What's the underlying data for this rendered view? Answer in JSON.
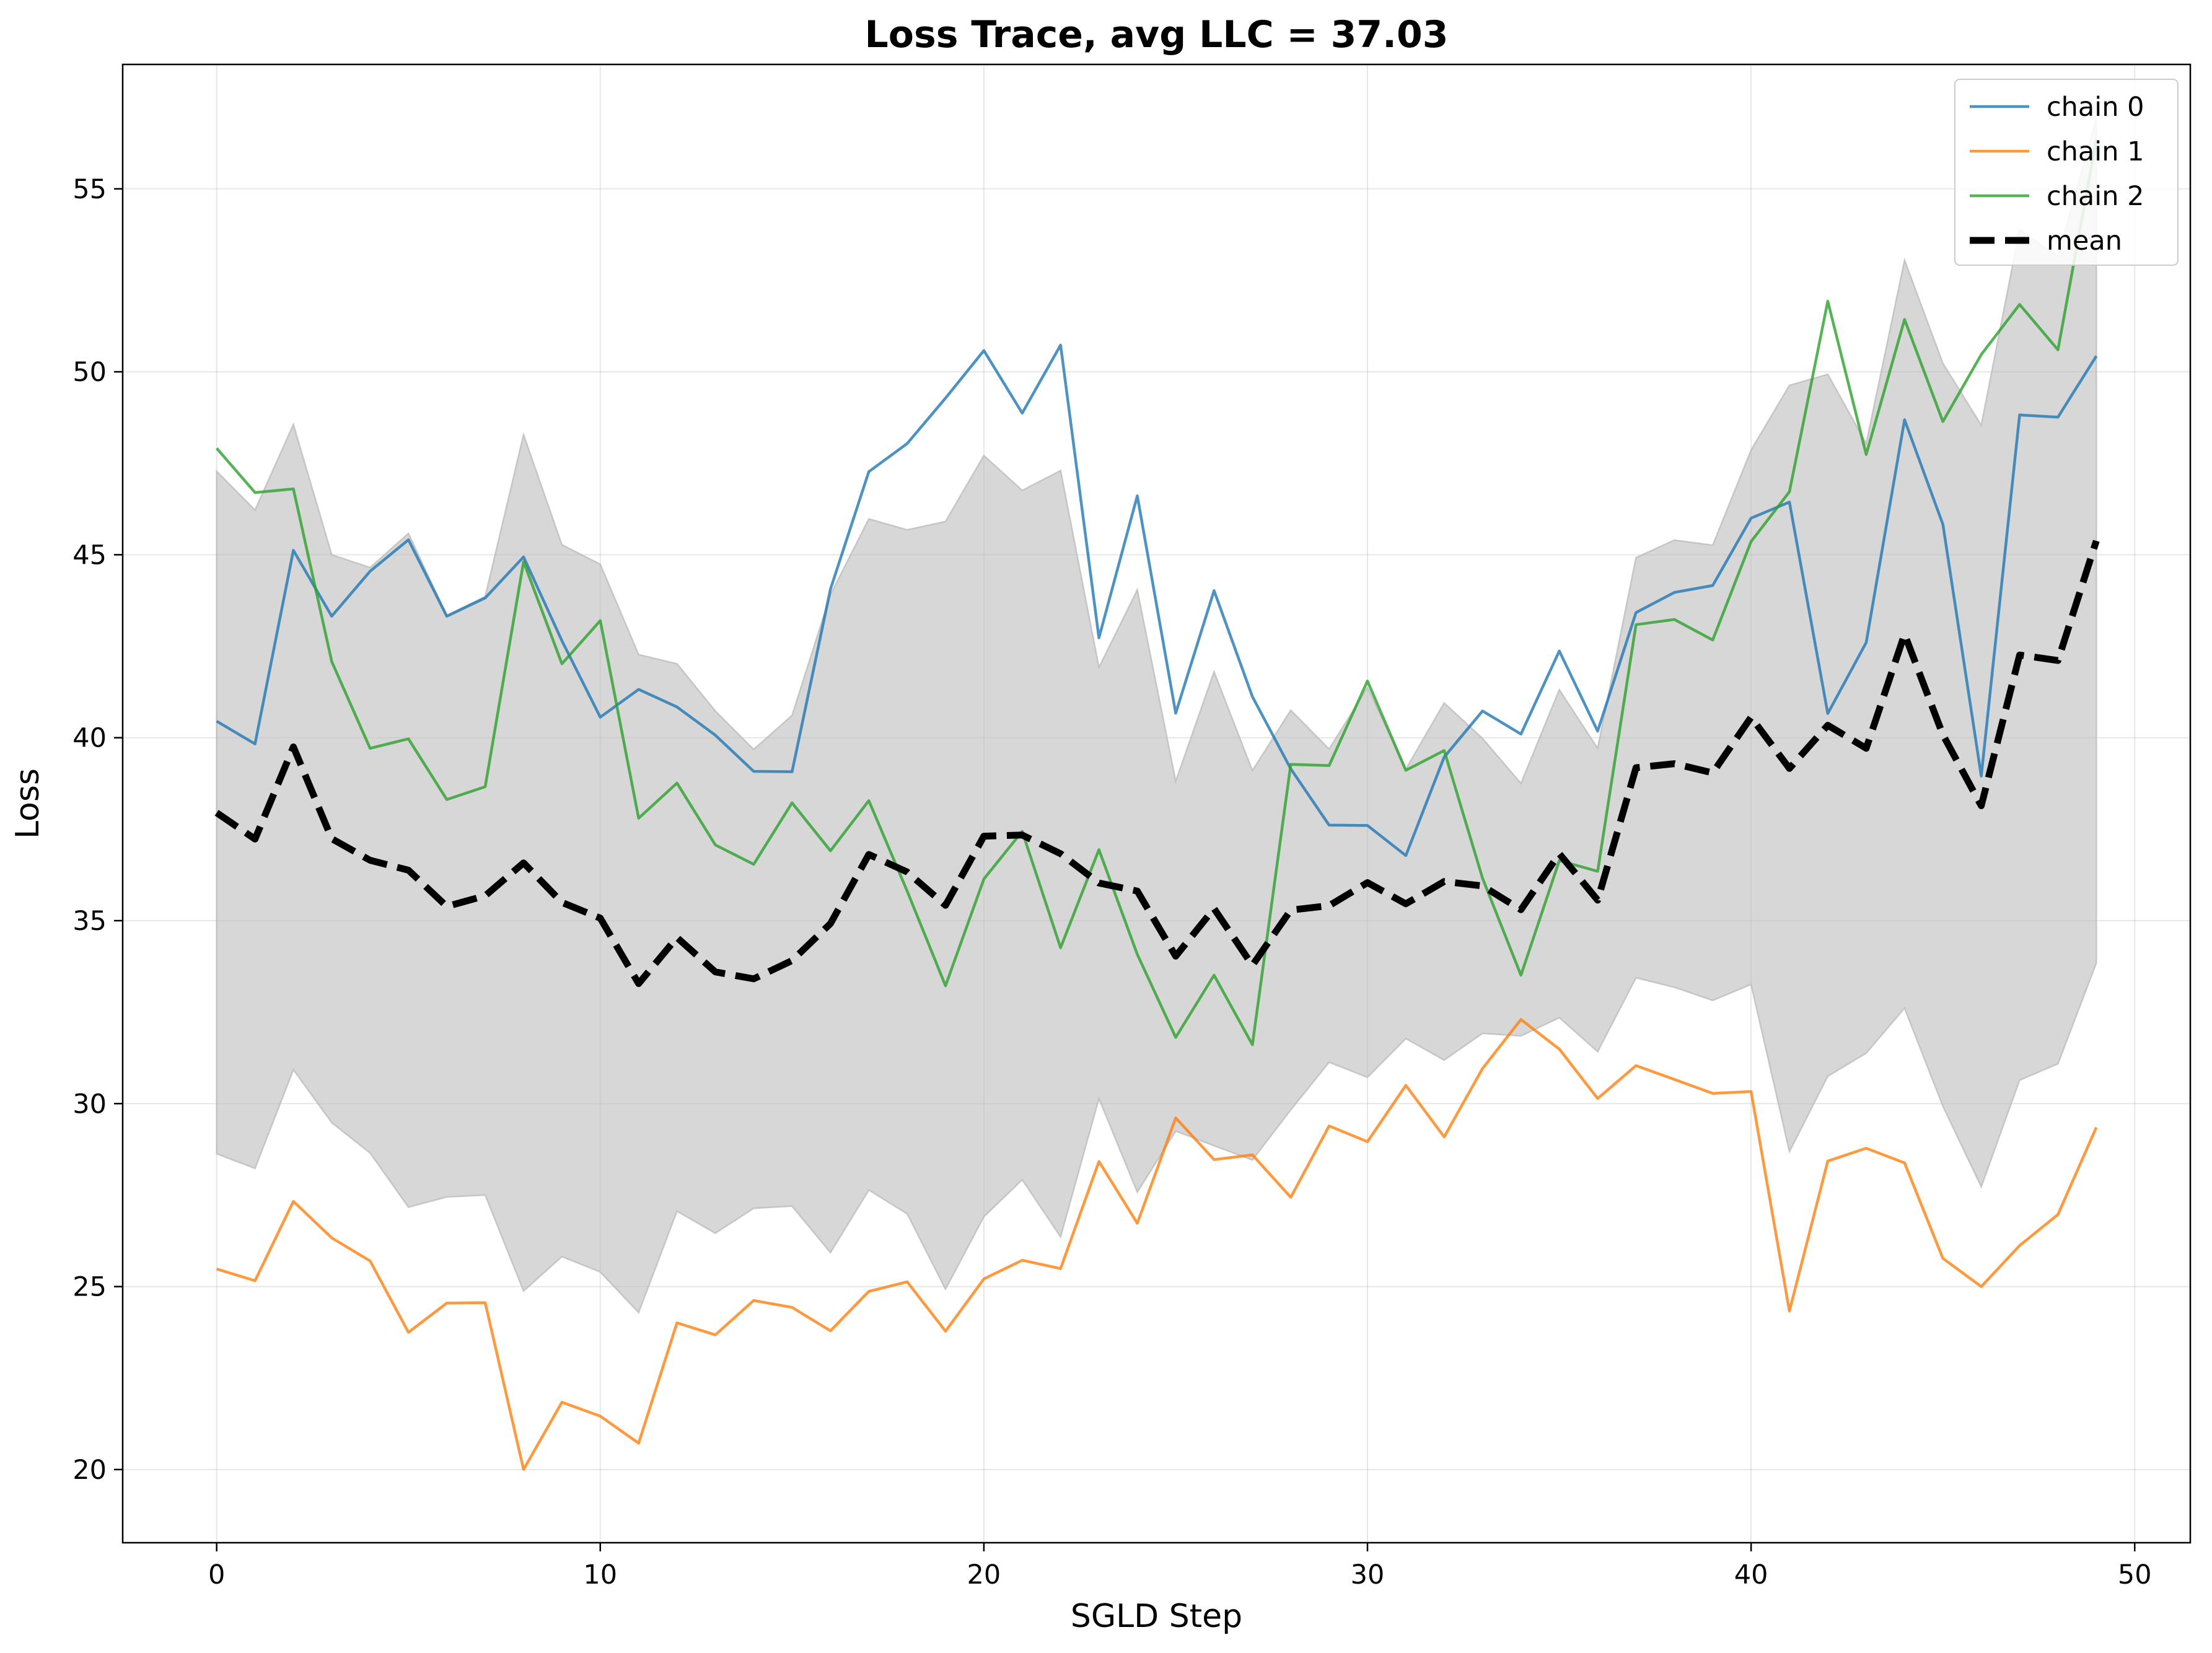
{
  "chart_data": {
    "type": "line",
    "title": "Loss Trace, avg LLC = 37.03",
    "xlabel": "SGLD Step",
    "ylabel": "Loss",
    "xlim": [
      -2.45,
      51.45
    ],
    "ylim": [
      18.0,
      58.4
    ],
    "xticks": [
      0,
      10,
      20,
      30,
      40,
      50
    ],
    "yticks": [
      20,
      25,
      30,
      35,
      40,
      45,
      50,
      55
    ],
    "grid": true,
    "legend_position": "top-right",
    "x": [
      0,
      1,
      2,
      3,
      4,
      5,
      6,
      7,
      8,
      9,
      10,
      11,
      12,
      13,
      14,
      15,
      16,
      17,
      18,
      19,
      20,
      21,
      22,
      23,
      24,
      25,
      26,
      27,
      28,
      29,
      30,
      31,
      32,
      33,
      34,
      35,
      36,
      37,
      38,
      39,
      40,
      41,
      42,
      43,
      44,
      45,
      46,
      47,
      48,
      49
    ],
    "series": [
      {
        "name": "chain 0",
        "color": "#1f77b4",
        "style": "solid",
        "values": [
          40.45,
          39.83,
          45.12,
          43.32,
          44.55,
          45.41,
          43.32,
          43.82,
          44.94,
          42.65,
          40.56,
          41.32,
          40.84,
          40.07,
          39.08,
          39.07,
          44.06,
          47.27,
          48.04,
          49.28,
          50.58,
          48.87,
          50.73,
          42.73,
          46.61,
          40.67,
          44.02,
          41.12,
          39.15,
          37.61,
          37.6,
          36.78,
          39.47,
          40.73,
          40.1,
          42.37,
          40.18,
          43.42,
          43.97,
          44.16,
          46.0,
          46.44,
          40.66,
          42.6,
          48.69,
          45.83,
          38.95,
          48.82,
          48.76,
          50.43
        ]
      },
      {
        "name": "chain 1",
        "color": "#ff7f0e",
        "style": "solid",
        "values": [
          25.48,
          25.16,
          27.33,
          26.33,
          25.7,
          23.75,
          24.55,
          24.56,
          20.0,
          21.84,
          21.46,
          20.72,
          24.01,
          23.68,
          24.62,
          24.43,
          23.79,
          24.87,
          25.13,
          23.78,
          25.21,
          25.72,
          25.49,
          28.42,
          26.73,
          29.61,
          28.47,
          28.6,
          27.44,
          29.39,
          28.96,
          30.5,
          29.09,
          30.96,
          32.3,
          31.49,
          30.14,
          31.04,
          30.66,
          30.28,
          30.33,
          24.33,
          28.43,
          28.78,
          28.38,
          25.77,
          25.0,
          26.12,
          26.97,
          29.35
        ]
      },
      {
        "name": "chain 2",
        "color": "#2ca02c",
        "style": "solid",
        "values": [
          47.91,
          46.7,
          46.8,
          42.08,
          39.71,
          39.97,
          38.31,
          38.66,
          44.81,
          42.02,
          43.2,
          37.8,
          38.76,
          37.07,
          36.54,
          38.22,
          36.91,
          38.28,
          35.81,
          33.22,
          36.14,
          37.44,
          34.26,
          36.94,
          34.08,
          31.81,
          33.51,
          31.61,
          39.27,
          39.24,
          41.55,
          39.11,
          39.65,
          36.16,
          33.51,
          36.64,
          36.35,
          43.09,
          43.23,
          42.67,
          45.36,
          46.72,
          51.93,
          47.74,
          51.43,
          48.64,
          50.47,
          51.84,
          50.6,
          56.35
        ]
      },
      {
        "name": "mean",
        "color": "#000000",
        "style": "dashed",
        "values": [
          37.95,
          37.23,
          39.75,
          37.24,
          36.65,
          36.38,
          35.39,
          35.68,
          36.58,
          35.5,
          35.07,
          33.28,
          34.54,
          33.6,
          33.41,
          33.91,
          34.92,
          36.81,
          36.33,
          35.42,
          37.31,
          37.34,
          36.83,
          36.03,
          35.81,
          34.03,
          35.33,
          33.78,
          35.29,
          35.41,
          36.04,
          35.46,
          36.07,
          35.95,
          35.3,
          36.83,
          35.56,
          39.18,
          39.29,
          39.04,
          40.56,
          39.16,
          40.34,
          39.71,
          42.83,
          40.08,
          38.14,
          42.26,
          42.11,
          45.38
        ]
      }
    ],
    "band": {
      "upper": [
        47.28,
        46.22,
        48.56,
        45.0,
        44.65,
        45.58,
        43.34,
        43.86,
        48.28,
        45.27,
        44.74,
        42.27,
        42.02,
        40.73,
        39.68,
        40.61,
        43.91,
        45.98,
        45.68,
        45.91,
        47.71,
        46.76,
        47.3,
        41.92,
        44.04,
        38.81,
        41.8,
        39.1,
        40.75,
        39.69,
        41.37,
        39.14,
        40.95,
        39.98,
        38.75,
        41.31,
        39.71,
        44.92,
        45.4,
        45.26,
        47.86,
        49.63,
        49.93,
        48.04,
        53.05,
        50.23,
        48.54,
        53.88,
        53.14,
        56.92
      ],
      "lower": [
        28.63,
        28.23,
        30.93,
        29.48,
        28.65,
        27.17,
        27.45,
        27.5,
        24.88,
        25.82,
        25.4,
        24.29,
        27.06,
        26.46,
        27.14,
        27.2,
        25.93,
        27.64,
        26.99,
        24.93,
        26.91,
        27.92,
        26.36,
        30.14,
        27.58,
        29.25,
        28.85,
        28.46,
        29.83,
        31.13,
        30.72,
        31.78,
        31.19,
        31.92,
        31.85,
        32.35,
        31.42,
        33.44,
        33.18,
        32.82,
        33.26,
        28.69,
        30.75,
        31.38,
        32.61,
        29.93,
        27.73,
        30.64,
        31.09,
        33.84
      ],
      "color": "#bdbdbd",
      "opacity": 0.6
    }
  }
}
